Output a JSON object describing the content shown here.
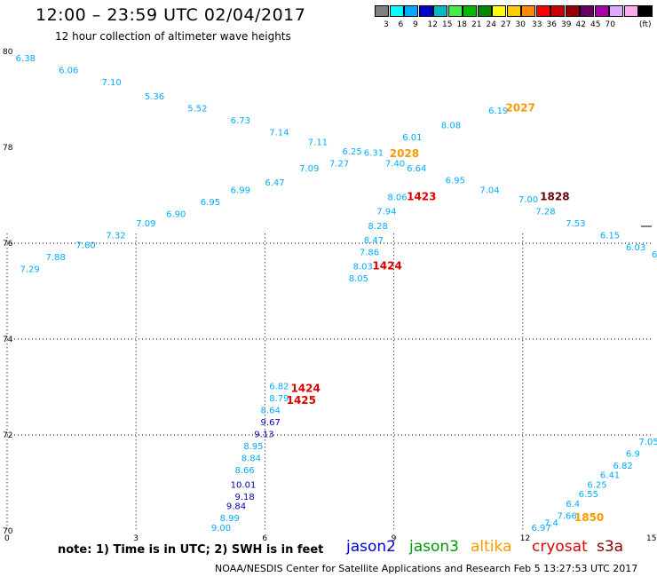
{
  "title": "12:00 – 23:59 UTC 02/04/2017",
  "subtitle": "12 hour collection of altimeter wave heights",
  "colorbar": {
    "unit": "(ft)",
    "levels": [
      "3",
      "6",
      "9",
      "12",
      "15",
      "18",
      "21",
      "24",
      "27",
      "30",
      "33",
      "36",
      "39",
      "42",
      "45",
      "70"
    ],
    "colors": [
      "#7f7f7f",
      "#00ffff",
      "#00aaff",
      "#0000cc",
      "#00bbbb",
      "#44ee44",
      "#00bb00",
      "#008800",
      "#ffff00",
      "#ffcc00",
      "#ff8800",
      "#ff0000",
      "#cc0000",
      "#990000",
      "#660066",
      "#aa00aa",
      "#ddaaff",
      "#ffaaee",
      "#000000"
    ]
  },
  "map": {
    "x_ticks": [
      "0",
      "3",
      "6",
      "9",
      "12",
      "15"
    ],
    "y_ticks": [
      "70",
      "72",
      "74",
      "76",
      "78",
      "80"
    ],
    "grid_x": [
      0,
      3,
      6,
      9,
      12,
      15
    ],
    "grid_y": [
      70,
      72,
      74,
      76,
      78,
      80
    ]
  },
  "swh": {
    "jason2": [
      {
        "v": "9.67",
        "lon": 5.9,
        "lat": 72.2
      },
      {
        "v": "9.13",
        "lon": 5.75,
        "lat": 71.95
      },
      {
        "v": "10.01",
        "lon": 5.2,
        "lat": 70.9
      },
      {
        "v": "9.18",
        "lon": 5.3,
        "lat": 70.65
      },
      {
        "v": "9.84",
        "lon": 5.1,
        "lat": 70.45
      }
    ],
    "cyan": [
      {
        "v": "6.38",
        "lon": 0.2,
        "lat": 79.8
      },
      {
        "v": "6.06",
        "lon": 1.2,
        "lat": 79.55
      },
      {
        "v": "7.10",
        "lon": 2.2,
        "lat": 79.3
      },
      {
        "v": "5.36",
        "lon": 3.2,
        "lat": 79.0
      },
      {
        "v": "5.52",
        "lon": 4.2,
        "lat": 78.75
      },
      {
        "v": "6.73",
        "lon": 5.2,
        "lat": 78.5
      },
      {
        "v": "7.14",
        "lon": 6.1,
        "lat": 78.25
      },
      {
        "v": "7.11",
        "lon": 7.0,
        "lat": 78.05
      },
      {
        "v": "6.25",
        "lon": 7.8,
        "lat": 77.85
      },
      {
        "v": "6.31",
        "lon": 8.3,
        "lat": 77.82
      },
      {
        "v": "7.40",
        "lon": 8.8,
        "lat": 77.6
      },
      {
        "v": "7.27",
        "lon": 7.5,
        "lat": 77.6
      },
      {
        "v": "7.09",
        "lon": 6.8,
        "lat": 77.5
      },
      {
        "v": "6.47",
        "lon": 6.0,
        "lat": 77.2
      },
      {
        "v": "6.99",
        "lon": 5.2,
        "lat": 77.05
      },
      {
        "v": "6.95",
        "lon": 4.5,
        "lat": 76.8
      },
      {
        "v": "6.90",
        "lon": 3.7,
        "lat": 76.55
      },
      {
        "v": "7.09",
        "lon": 3.0,
        "lat": 76.35
      },
      {
        "v": "7.32",
        "lon": 2.3,
        "lat": 76.1
      },
      {
        "v": "7.60",
        "lon": 1.6,
        "lat": 75.9
      },
      {
        "v": "7.88",
        "lon": 0.9,
        "lat": 75.65
      },
      {
        "v": "7.29",
        "lon": 0.3,
        "lat": 75.4
      },
      {
        "v": "6.01",
        "lon": 9.2,
        "lat": 78.15
      },
      {
        "v": "8.08",
        "lon": 10.1,
        "lat": 78.4
      },
      {
        "v": "6.19",
        "lon": 11.2,
        "lat": 78.7
      },
      {
        "v": "6.64",
        "lon": 9.3,
        "lat": 77.5
      },
      {
        "v": "6.95",
        "lon": 10.2,
        "lat": 77.25
      },
      {
        "v": "7.04",
        "lon": 11.0,
        "lat": 77.05
      },
      {
        "v": "7.00",
        "lon": 11.9,
        "lat": 76.85
      },
      {
        "v": "7.28",
        "lon": 12.3,
        "lat": 76.6
      },
      {
        "v": "7.53",
        "lon": 13.0,
        "lat": 76.35
      },
      {
        "v": "6.15",
        "lon": 13.8,
        "lat": 76.1
      },
      {
        "v": "6.03",
        "lon": 14.4,
        "lat": 75.85
      },
      {
        "v": "6",
        "lon": 15.0,
        "lat": 75.7
      },
      {
        "v": "8.06",
        "lon": 8.85,
        "lat": 76.9
      },
      {
        "v": "7.94",
        "lon": 8.6,
        "lat": 76.6
      },
      {
        "v": "8.28",
        "lon": 8.4,
        "lat": 76.3
      },
      {
        "v": "8.47",
        "lon": 8.3,
        "lat": 76.0
      },
      {
        "v": "7.86",
        "lon": 8.2,
        "lat": 75.75
      },
      {
        "v": "8.03",
        "lon": 8.05,
        "lat": 75.45
      },
      {
        "v": "8.05",
        "lon": 7.95,
        "lat": 75.2
      },
      {
        "v": "6.82",
        "lon": 6.1,
        "lat": 72.95
      },
      {
        "v": "8.79",
        "lon": 6.1,
        "lat": 72.7
      },
      {
        "v": "8.64",
        "lon": 5.9,
        "lat": 72.45
      },
      {
        "v": "8.95",
        "lon": 5.5,
        "lat": 71.7
      },
      {
        "v": "8.84",
        "lon": 5.45,
        "lat": 71.45
      },
      {
        "v": "8.66",
        "lon": 5.3,
        "lat": 71.2
      },
      {
        "v": "8.99",
        "lon": 4.95,
        "lat": 70.2
      },
      {
        "v": "9.00",
        "lon": 4.75,
        "lat": 70.0
      },
      {
        "v": "6.97",
        "lon": 12.2,
        "lat": 70.0
      },
      {
        "v": "7.4",
        "lon": 12.5,
        "lat": 70.1
      },
      {
        "v": "7.66",
        "lon": 12.8,
        "lat": 70.25
      },
      {
        "v": "6.4",
        "lon": 13.0,
        "lat": 70.5
      },
      {
        "v": "6.55",
        "lon": 13.3,
        "lat": 70.7
      },
      {
        "v": "6.25",
        "lon": 13.5,
        "lat": 70.9
      },
      {
        "v": "6.41",
        "lon": 13.8,
        "lat": 71.1
      },
      {
        "v": "6.82",
        "lon": 14.1,
        "lat": 71.3
      },
      {
        "v": "6.9",
        "lon": 14.4,
        "lat": 71.55
      },
      {
        "v": "7.05",
        "lon": 14.7,
        "lat": 71.8
      }
    ],
    "jason3": [],
    "altika": [
      {
        "v": "2027",
        "lon": 11.6,
        "lat": 78.75
      },
      {
        "v": "2028",
        "lon": 8.9,
        "lat": 77.8
      },
      {
        "v": "1850",
        "lon": 13.2,
        "lat": 70.2
      }
    ],
    "cryosat": [
      {
        "v": "1423",
        "lon": 9.3,
        "lat": 76.9
      },
      {
        "v": "1424",
        "lon": 8.5,
        "lat": 75.45
      },
      {
        "v": "1424",
        "lon": 6.6,
        "lat": 72.9
      },
      {
        "v": "1425",
        "lon": 6.5,
        "lat": 72.65
      }
    ],
    "s3a": [
      {
        "v": "1828",
        "lon": 12.4,
        "lat": 76.9
      }
    ]
  },
  "note": "note:  1) Time is in UTC;  2) SWH is in feet",
  "legend": [
    {
      "label": "jason2",
      "color": "#0000dd"
    },
    {
      "label": "jason3",
      "color": "#009900"
    },
    {
      "label": "altika",
      "color": "#ff9900"
    },
    {
      "label": "cryosat",
      "color": "#dd0000"
    },
    {
      "label": "s3a",
      "color": "#880000"
    }
  ],
  "footer": "NOAA/NESDIS Center for Satellite Applications and Research    Feb  5 13:27:53 UTC 2017",
  "colors": {
    "cyan_text": "#00aaff",
    "jason2_text": "#0000aa",
    "altika_text": "#ff9900",
    "cryosat_text": "#dd0000",
    "s3a_text": "#660000",
    "grid": "#000000"
  }
}
